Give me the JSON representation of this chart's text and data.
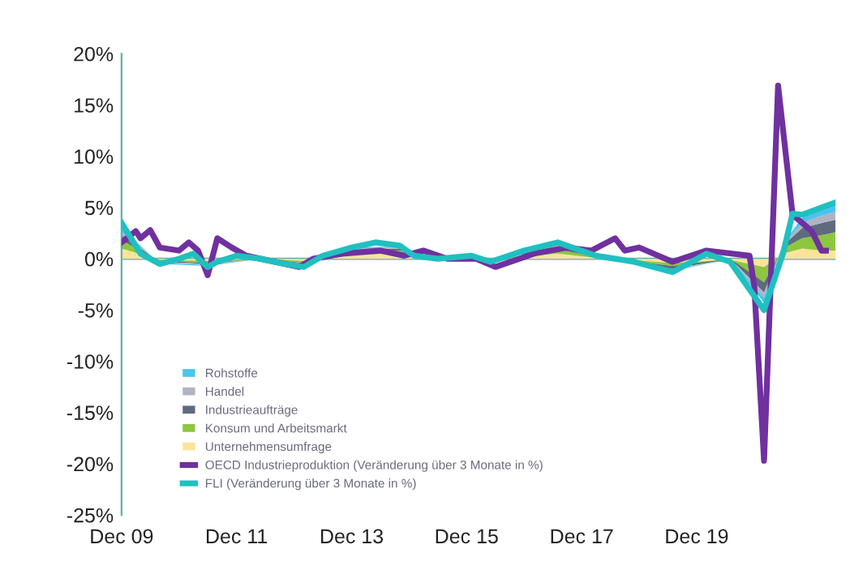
{
  "chart_data": {
    "type": "area",
    "stacked": true,
    "legend": "bottom left",
    "grid": false,
    "xlim": [
      "2009-12",
      "2022-05"
    ],
    "xticks": [
      {
        "value": "2009-12",
        "label": "Dec 09"
      },
      {
        "value": "2011-12",
        "label": "Dec 11"
      },
      {
        "value": "2013-12",
        "label": "Dec 13"
      },
      {
        "value": "2015-12",
        "label": "Dec 15"
      },
      {
        "value": "2017-12",
        "label": "Dec 17"
      },
      {
        "value": "2019-12",
        "label": "Dec 19"
      }
    ],
    "ylim": [
      -25,
      20
    ],
    "ref_lines": [
      {
        "axis": "y",
        "value": 0,
        "color": "#5fb0b0"
      }
    ],
    "yticks": [
      {
        "value": -25,
        "label": "-25%"
      },
      {
        "value": -20,
        "label": "-20%"
      },
      {
        "value": -15,
        "label": "-15%"
      },
      {
        "value": -10,
        "label": "-10%"
      },
      {
        "value": -5,
        "label": "-5%"
      },
      {
        "value": 0,
        "label": "0%"
      },
      {
        "value": 5,
        "label": "5%"
      },
      {
        "value": 10,
        "label": "10%"
      },
      {
        "value": 15,
        "label": "15%"
      },
      {
        "value": 20,
        "label": "20%"
      }
    ],
    "x": [
      "2009-12",
      "2010-08",
      "2011-06",
      "2012-05",
      "2013-02",
      "2013-12",
      "2014-10",
      "2015-06",
      "2016-05",
      "2017-07",
      "2018-03",
      "2019-07",
      "2020-07",
      "2021-02",
      "2021-06",
      "2021-10",
      "2022-02",
      "2022-05"
    ],
    "series": [
      {
        "name": "Unternehmensumfrage",
        "color": "#fde49a",
        "values": [
          1.0,
          -0.1,
          -0.2,
          0,
          -0.2,
          0.4,
          0.5,
          0,
          -0.1,
          0.5,
          0.1,
          -0.4,
          -0.1,
          -0.8,
          0.5,
          1.0,
          0.8,
          0.8
        ]
      },
      {
        "name": "Konsum und Arbeitsmarkt",
        "color": "#8dc63f",
        "values": [
          0.8,
          -0.1,
          -0.2,
          0,
          -0.2,
          0.3,
          0.3,
          0,
          -0.1,
          0.4,
          0.1,
          -0.3,
          -0.1,
          -1.5,
          0.5,
          1.0,
          1.5,
          1.8
        ]
      },
      {
        "name": "Industrieaufträge",
        "color": "#5e6b7e",
        "values": [
          0.5,
          -0.1,
          -0.1,
          0,
          -0.1,
          0.2,
          0.2,
          0,
          0,
          0.3,
          0.1,
          -0.3,
          0,
          -1.0,
          0.3,
          1.0,
          1.2,
          1.2
        ]
      },
      {
        "name": "Handel",
        "color": "#b0b3c0",
        "values": [
          0.3,
          -0.1,
          -0.1,
          0,
          -0.1,
          0.1,
          0.1,
          0,
          0,
          0.2,
          0,
          -0.1,
          0,
          -0.5,
          0.1,
          0.5,
          0.7,
          0.8
        ]
      },
      {
        "name": "Rohstoffe",
        "color": "#4bc4ef",
        "values": [
          0.4,
          -0.1,
          -0.1,
          0,
          -0.1,
          0.1,
          0.1,
          0,
          0,
          0.2,
          0,
          -0.1,
          0,
          -0.5,
          0.1,
          0.5,
          0.6,
          0.8
        ]
      },
      {
        "name": "OECD Industrieproduktion (Veränderung über 3 Monate in %)",
        "type": "line",
        "color": "#7030a0",
        "x": [
          "2009-12",
          "2010-03",
          "2010-04",
          "2010-06",
          "2010-08",
          "2010-12",
          "2011-02",
          "2011-04",
          "2011-06",
          "2011-08",
          "2011-11",
          "2012-02",
          "2013-01",
          "2013-04",
          "2013-10",
          "2014-06",
          "2014-11",
          "2015-03",
          "2015-08",
          "2016-02",
          "2016-06",
          "2017-02",
          "2017-09",
          "2018-02",
          "2018-07",
          "2018-09",
          "2018-12",
          "2019-07",
          "2020-02",
          "2020-11",
          "2020-12",
          "2021-02",
          "2021-05",
          "2021-08",
          "2021-12",
          "2022-02",
          "2022-03"
        ],
        "values": [
          1.6,
          2.7,
          2.0,
          2.8,
          1.1,
          0.8,
          1.6,
          0.8,
          -1.6,
          2.0,
          1.1,
          0.3,
          -0.8,
          0,
          0.5,
          0.8,
          0.3,
          0.8,
          0,
          0,
          -0.8,
          0.5,
          1.1,
          0.8,
          2.0,
          0.8,
          1.1,
          -0.3,
          0.8,
          0.3,
          -2.7,
          -19.7,
          16.9,
          4.3,
          2.7,
          0.8,
          0.8
        ]
      },
      {
        "name": "FLI (Veränderung über 3 Monate in %)",
        "type": "line",
        "color": "#20c0c0",
        "x": [
          "2009-12",
          "2010-04",
          "2010-08",
          "2010-12",
          "2011-03",
          "2011-06",
          "2011-08",
          "2011-12",
          "2012-05",
          "2012-10",
          "2013-02",
          "2013-06",
          "2013-12",
          "2014-05",
          "2014-10",
          "2015-01",
          "2015-06",
          "2016-01",
          "2016-05",
          "2016-12",
          "2017-07",
          "2017-10",
          "2018-03",
          "2018-11",
          "2019-07",
          "2020-02",
          "2020-07",
          "2021-02",
          "2021-06",
          "2021-08",
          "2021-10",
          "2022-02",
          "2022-05"
        ],
        "values": [
          3.5,
          0.5,
          -0.5,
          0,
          0.5,
          -0.8,
          -0.3,
          0.3,
          0,
          -0.5,
          -0.8,
          0.3,
          1.1,
          1.6,
          1.3,
          0.3,
          0,
          0.3,
          -0.3,
          0.8,
          1.6,
          1.1,
          0.3,
          -0.3,
          -1.3,
          0.5,
          -0.3,
          -5.0,
          0.5,
          4.4,
          4.3,
          5.0,
          5.5
        ]
      }
    ]
  }
}
